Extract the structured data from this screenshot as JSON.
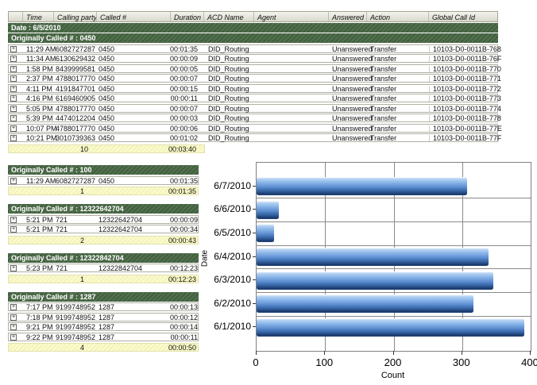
{
  "icons": {
    "expand": "+"
  },
  "report": {
    "columns": [
      "Time",
      "Calling party #",
      "Called #",
      "Duration",
      "ACD Name",
      "Agent",
      "Answered",
      "Action",
      "Global Call Id"
    ],
    "date_header": "Date : 6/5/2010",
    "group_header": "Originally Called # : 0450",
    "rows": [
      {
        "time": "11:29 AM",
        "calling": "6082727287",
        "called": "0450",
        "duration": "00:01:35",
        "acd": "DID_Routing",
        "agent": "",
        "answered": "Unanswered",
        "action": "Transfer",
        "global_id": "10103-D0-0011B-768"
      },
      {
        "time": "11:34 AM",
        "calling": "6130629432",
        "called": "0450",
        "duration": "00:00:09",
        "acd": "DID_Routing",
        "agent": "",
        "answered": "Unanswered",
        "action": "Transfer",
        "global_id": "10103-D0-0011B-76F"
      },
      {
        "time": "1:58 PM",
        "calling": "8439999581",
        "called": "0450",
        "duration": "00:00:05",
        "acd": "DID_Routing",
        "agent": "",
        "answered": "Unanswered",
        "action": "Transfer",
        "global_id": "10103-D0-0011B-770"
      },
      {
        "time": "2:37 PM",
        "calling": "4788017770",
        "called": "0450",
        "duration": "00:00:07",
        "acd": "DID_Routing",
        "agent": "",
        "answered": "Unanswered",
        "action": "Transfer",
        "global_id": "10103-D0-0011B-771"
      },
      {
        "time": "4:11 PM",
        "calling": "4191847701",
        "called": "0450",
        "duration": "00:00:15",
        "acd": "DID_Routing",
        "agent": "",
        "answered": "Unanswered",
        "action": "Transfer",
        "global_id": "10103-D0-0011B-772"
      },
      {
        "time": "4:16 PM",
        "calling": "6169460905",
        "called": "0450",
        "duration": "00:00:11",
        "acd": "DID_Routing",
        "agent": "",
        "answered": "Unanswered",
        "action": "Transfer",
        "global_id": "10103-D0-0011B-773"
      },
      {
        "time": "5:05 PM",
        "calling": "4788017770",
        "called": "0450",
        "duration": "00:00:07",
        "acd": "DID_Routing",
        "agent": "",
        "answered": "Unanswered",
        "action": "Transfer",
        "global_id": "10103-D0-0011B-774"
      },
      {
        "time": "5:39 PM",
        "calling": "4474012204",
        "called": "0450",
        "duration": "00:00:03",
        "acd": "DID_Routing",
        "agent": "",
        "answered": "Unanswered",
        "action": "Transfer",
        "global_id": "10103-D0-0011B-778"
      },
      {
        "time": "10:07 PM",
        "calling": "4788017770",
        "called": "0450",
        "duration": "00:00:06",
        "acd": "DID_Routing",
        "agent": "",
        "answered": "Unanswered",
        "action": "Transfer",
        "global_id": "10103-D0-0011B-77E"
      },
      {
        "time": "10:21 PM",
        "calling": "3010739363",
        "called": "0450",
        "duration": "00:01:02",
        "acd": "DID_Routing",
        "agent": "",
        "answered": "Unanswered",
        "action": "Transfer",
        "global_id": "10103-D0-0011B-77F"
      }
    ],
    "summary": {
      "count": "10",
      "total": "00:03:40"
    }
  },
  "sections": [
    {
      "header": "Originally Called # : 100",
      "rows": [
        {
          "time": "11:29 AM",
          "calling": "6082727287",
          "called": "0450",
          "duration": "00:01:35"
        }
      ],
      "summary": {
        "count": "1",
        "total": "00:01:35"
      }
    },
    {
      "header": "Originally Called # : 12322642704",
      "rows": [
        {
          "time": "5:21 PM",
          "calling": "721",
          "called": "12322642704",
          "duration": "00:00:09"
        },
        {
          "time": "5:21 PM",
          "calling": "721",
          "called": "12322642704",
          "duration": "00:00:34"
        }
      ],
      "summary": {
        "count": "2",
        "total": "00:00:43"
      }
    },
    {
      "header": "Originally Called # : 12322842704",
      "rows": [
        {
          "time": "5:23 PM",
          "calling": "721",
          "called": "12322842704",
          "duration": "00:12:23"
        }
      ],
      "summary": {
        "count": "1",
        "total": "00:12:23"
      }
    },
    {
      "header": "Originally Called # : 1287",
      "rows": [
        {
          "time": "7:17 PM",
          "calling": "9199748952",
          "called": "1287",
          "duration": "00:00:13"
        },
        {
          "time": "7:18 PM",
          "calling": "9199748952",
          "called": "1287",
          "duration": "00:00:12"
        },
        {
          "time": "9:21 PM",
          "calling": "9199748952",
          "called": "1287",
          "duration": "00:00:14"
        },
        {
          "time": "9:22 PM",
          "calling": "9199748952",
          "called": "1287",
          "duration": "00:00:11"
        }
      ],
      "summary": {
        "count": "4",
        "total": "00:00:50"
      }
    }
  ],
  "chart_data": {
    "type": "bar",
    "orientation": "horizontal",
    "categories": [
      "6/7/2010",
      "6/6/2010",
      "6/5/2010",
      "6/4/2010",
      "6/3/2010",
      "6/2/2010",
      "6/1/2010"
    ],
    "values": [
      307,
      32,
      26,
      339,
      346,
      316,
      391
    ],
    "xlabel": "Count",
    "ylabel": "Date",
    "xlim": [
      0,
      400
    ],
    "xticks": [
      0,
      100,
      200,
      300,
      400
    ],
    "grid": true,
    "legend_position": "none",
    "bar_color": "#5d8ed2"
  },
  "colors": {
    "group_header_bg": "#4a6847",
    "summary_bg": "#f7f7c5",
    "bar_top": "#b9d4f3",
    "bar_bottom": "#1b3a6b",
    "grid": "#8a8a8a"
  }
}
